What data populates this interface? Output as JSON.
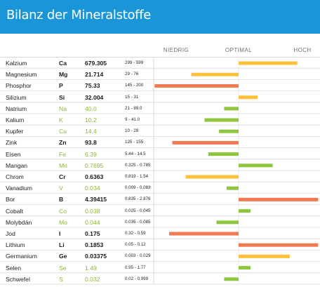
{
  "header": {
    "title": "Bilanz der Mineralstoffe"
  },
  "scale_labels": {
    "low": "NIEDRIG",
    "optimal": "OPTIMAL",
    "high": "HOCH"
  },
  "colors": {
    "header": "#1a96d8",
    "green": "#8ec63f",
    "yellow": "#fbc13b",
    "orange": "#f07b53",
    "grid": "#d8d8d8"
  },
  "chart_data": {
    "type": "bar",
    "orientation": "horizontal-deviation",
    "scale": [
      "NIEDRIG",
      "OPTIMAL",
      "HOCH"
    ],
    "rows": [
      {
        "name": "Kalzium",
        "symbol": "Ca",
        "value": "679.305",
        "range": "299 - 599",
        "status": "yellow",
        "deviation": 0.93
      },
      {
        "name": "Magnesium",
        "symbol": "Mg",
        "value": "21.714",
        "range": "29 - 76",
        "status": "yellow",
        "deviation": -0.75
      },
      {
        "name": "Phosphor",
        "symbol": "P",
        "value": "75.33",
        "range": "145 - 200",
        "status": "orange",
        "deviation": -1.33
      },
      {
        "name": "Silizium",
        "symbol": "Si",
        "value": "32.004",
        "range": "15 - 31",
        "status": "yellow",
        "deviation": 0.3
      },
      {
        "name": "Natrium",
        "symbol": "Na",
        "value": "40.0",
        "range": "21 - 89.0",
        "status": "green",
        "deviation": -0.23
      },
      {
        "name": "Kalium",
        "symbol": "K",
        "value": "10.2",
        "range": "9 - 41.0",
        "status": "green",
        "deviation": -0.54
      },
      {
        "name": "Kupfer",
        "symbol": "Cu",
        "value": "14.4",
        "range": "10 - 28",
        "status": "green",
        "deviation": -0.31
      },
      {
        "name": "Zink",
        "symbol": "Zn",
        "value": "93.8",
        "range": "125 - 155",
        "status": "orange",
        "deviation": -1.05
      },
      {
        "name": "Eisen",
        "symbol": "Fe",
        "value": "6.39",
        "range": "5.44 - 14.5",
        "status": "green",
        "deviation": -0.48
      },
      {
        "name": "Mangan",
        "symbol": "Mn",
        "value": "0.7695",
        "range": "0.325 - 0.785",
        "status": "green",
        "deviation": 0.54
      },
      {
        "name": "Chrom",
        "symbol": "Cr",
        "value": "0.6363",
        "range": "0.819 - 1.54",
        "status": "yellow",
        "deviation": -0.84
      },
      {
        "name": "Vanadium",
        "symbol": "V",
        "value": "0.034",
        "range": "0.009 - 0.083",
        "status": "green",
        "deviation": -0.19
      },
      {
        "name": "Bor",
        "symbol": "B",
        "value": "4.39415",
        "range": "0.835 - 2.876",
        "status": "orange",
        "deviation": 1.26
      },
      {
        "name": "Cobalt",
        "symbol": "Co",
        "value": "0.038",
        "status": "green",
        "range": "0.025 - 0.045",
        "deviation": 0.19
      },
      {
        "name": "Molybdän",
        "symbol": "Mo",
        "value": "0.044",
        "range": "0.035 - 0.085",
        "status": "green",
        "deviation": -0.35
      },
      {
        "name": "Jod",
        "symbol": "I",
        "value": "0.175",
        "range": "0.32 - 0.59",
        "status": "orange",
        "deviation": -1.1
      },
      {
        "name": "Lithium",
        "symbol": "Li",
        "value": "0.1853",
        "range": "0.05 - 0.12",
        "status": "orange",
        "deviation": 1.26
      },
      {
        "name": "Germanium",
        "symbol": "Ge",
        "value": "0.03375",
        "range": "0.003 - 0.029",
        "status": "yellow",
        "deviation": 0.81
      },
      {
        "name": "Selen",
        "symbol": "Se",
        "value": "1.49",
        "range": "0.95 - 1.77",
        "status": "green",
        "deviation": 0.19
      },
      {
        "name": "Schwefel",
        "symbol": "S",
        "value": "0.032",
        "range": "0.02 - 0.999",
        "status": "green",
        "deviation": -0.23
      }
    ]
  }
}
